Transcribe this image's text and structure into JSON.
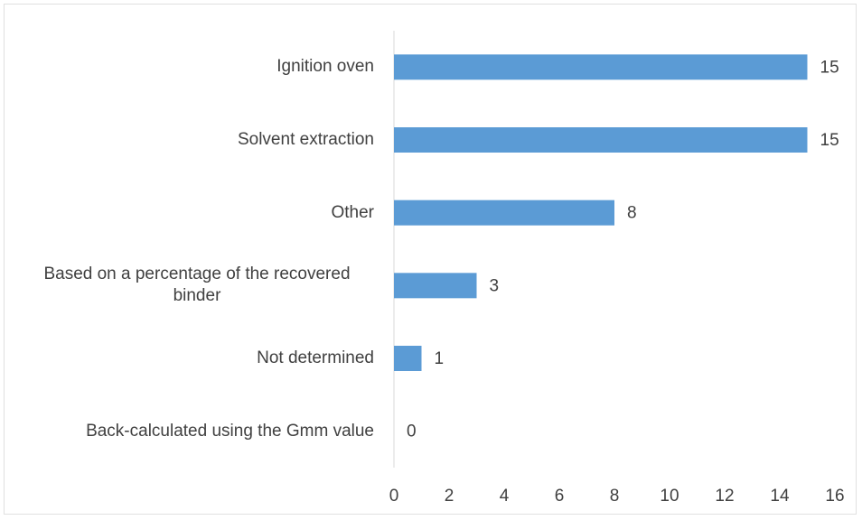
{
  "chart_data": {
    "type": "bar",
    "orientation": "horizontal",
    "categories": [
      "Ignition oven",
      "Solvent extraction",
      "Other",
      "Based on a percentage of the recovered binder",
      "Not determined",
      "Back-calculated using the Gmm value"
    ],
    "values": [
      15,
      15,
      8,
      3,
      1,
      0
    ],
    "color": "#5b9bd5",
    "xlim": [
      0,
      16
    ],
    "xticks": [
      0,
      2,
      4,
      6,
      8,
      10,
      12,
      14,
      16
    ],
    "grid": false
  }
}
